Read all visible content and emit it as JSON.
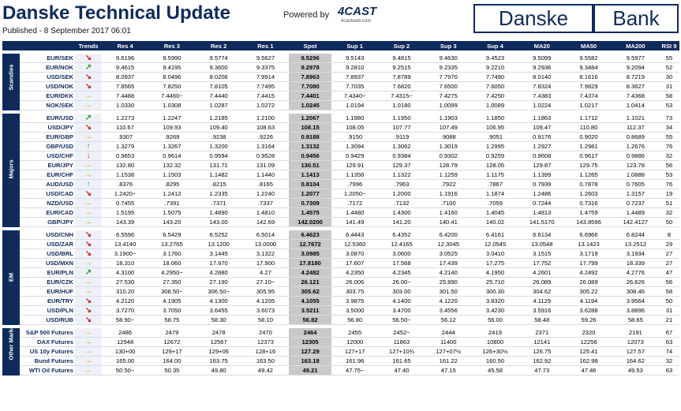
{
  "header": {
    "title": "Danske Technical Update",
    "published": "Published - 8 September 2017 06:01",
    "powered_by": "Powered by",
    "logo_4cast": "4CAST",
    "logo_4cast_sub": "4castweb.com",
    "logo_danske": "Danske",
    "logo_bank": "Bank"
  },
  "table": {
    "columns": [
      "Trends",
      "Res 4",
      "Res 3",
      "Res 2",
      "Res 1",
      "Spot",
      "Sup 1",
      "Sup 2",
      "Sup 3",
      "Sup 4",
      "MA20",
      "MA50",
      "MA200",
      "RSI 9"
    ],
    "groups": [
      {
        "name": "Scandies",
        "rows": [
          [
            "EUR/SEK",
            "↘",
            "9.6196",
            "9.5990",
            "9.5774",
            "9.5627",
            "9.5296",
            "9.5143",
            "9.4815",
            "9.4630",
            "9.4523",
            "9.5099",
            "9.5582",
            "9.5977",
            "55"
          ],
          [
            "EUR/NOK",
            "↗",
            "9.4615",
            "9.4195",
            "9.3600",
            "9.3375",
            "9.2978",
            "9.2810",
            "9.2515",
            "9.2335",
            "9.2210",
            "9.2936",
            "9.3484",
            "9.2094",
            "52"
          ],
          [
            "USD/SEK",
            "↘",
            "8.0937",
            "8.0496",
            "8.0206",
            "7.9914",
            "7.8963",
            "7.8937",
            "7.8789",
            "7.7970",
            "7.7490",
            "8.0140",
            "8.1616",
            "8.7219",
            "30"
          ],
          [
            "USD/NOK",
            "↘",
            "7.8565",
            "7.8250",
            "7.8105",
            "7.7495",
            "7.7080",
            "7.7035",
            "7.6820",
            "7.6500",
            "7.6050",
            "7.8324",
            "7.9829",
            "8.3627",
            "31"
          ],
          [
            "EUR/DKK",
            "→",
            "7.4488",
            "7.4460~",
            "7.4440",
            "7.4415",
            "7.4401",
            "7.4340~",
            "7.4315~",
            "7.4275",
            "7.4250",
            "7.4383",
            "7.4374",
            "7.4368",
            "58"
          ],
          [
            "NOK/SEK",
            "→",
            "1.0330",
            "1.0308",
            "1.0287",
            "1.0272",
            "1.0245",
            "1.0194",
            "1.0180",
            "1.0099",
            "1.0089",
            "1.0224",
            "1.0217",
            "1.0414",
            "53"
          ]
        ]
      },
      {
        "name": "Majors",
        "rows": [
          [
            "EUR/USD",
            "↗",
            "1.2273",
            "1.2247",
            "1.2185",
            "1.2100",
            "1.2067",
            "1.1980",
            "1.1950",
            "1.1903",
            "1.1850",
            "1.1863",
            "1.1712",
            "1.1021",
            "73"
          ],
          [
            "USD/JPY",
            "↘",
            "110.67",
            "109.93",
            "109.40",
            "108.63",
            "108.15",
            "108.05",
            "107.77",
            "107.49",
            "106.95",
            "109.47",
            "110.80",
            "112.37",
            "34"
          ],
          [
            "EUR/GBP",
            "→",
            ".9307",
            ".9269",
            ".9238",
            ".9226",
            "0.9188",
            ".9150",
            ".9119",
            ".9088",
            ".9051",
            "0.9176",
            "0.9020",
            "0.8689",
            "55"
          ],
          [
            "GBP/USD",
            "↑",
            "1.3279",
            "1.3267",
            "1.3200",
            "1.3164",
            "1.3132",
            "1.3094",
            "1.3062",
            "1.3019",
            "1.2995",
            "1.2927",
            "1.2981",
            "1.2676",
            "76"
          ],
          [
            "USD/CHF",
            "↓",
            "0.9653",
            "0.9614",
            "0.9594",
            "0.9528",
            "0.9456",
            "0.9429",
            "0.9384",
            "0.9302",
            "0.9259",
            "0.9608",
            "0.9617",
            "0.9886",
            "32"
          ],
          [
            "EUR/JPY",
            "→",
            "132.80",
            "132.32",
            "131.71",
            "131.09",
            "130.51",
            "129.91",
            "129.37",
            "128.79",
            "128.05",
            "129.87",
            "129.75",
            "123.78",
            "56"
          ],
          [
            "EUR/CHF",
            "→",
            "1.1538",
            "1.1503",
            "1.1482",
            "1.1440",
            "1.1413",
            "1.1356",
            "1.1322",
            "1.1259",
            "1.1175",
            "1.1399",
            "1.1265",
            "1.0888",
            "53"
          ],
          [
            "AUD/USD",
            "↑",
            ".8376",
            ".8295",
            ".8215",
            ".8165",
            "0.8104",
            ".7996",
            ".7963",
            ".7922",
            ".7867",
            "0.7939",
            "0.7878",
            "0.7605",
            "76"
          ],
          [
            "USD/CAD",
            "↘",
            "1.2420~",
            "1.2412",
            "1.2335",
            "1.2240",
            "1.2077",
            "1.2050~",
            "1.2000",
            "1.1916",
            "1.1874",
            "1.2486",
            "1.2603",
            "1.3157",
            "19"
          ],
          [
            "NZD/USD",
            "→",
            "0.7455",
            ".7391",
            ".7371",
            ".7337",
            "0.7309",
            ".7172",
            ".7132",
            ".7100",
            ".7059",
            "0.7244",
            "0.7316",
            "0.7237",
            "51"
          ],
          [
            "EUR/CAD",
            "→",
            "1.5195",
            "1.5075",
            "1.4890",
            "1.4810",
            "1.4575",
            "1.4480",
            "1.4300",
            "1.4160",
            "1.4045",
            "1.4813",
            "1.4759",
            "1.4489",
            "32"
          ],
          [
            "GBP/JPY",
            "→",
            "143.39",
            "143.20",
            "143.00",
            "142.69",
            "142.0200",
            "141.49",
            "141.20",
            "140.41",
            "140.02",
            "141.5170",
            "143.8596",
            "142.4127",
            "50"
          ]
        ]
      },
      {
        "name": "EM",
        "rows": [
          [
            "USD/CNH",
            "↘",
            "6.5596",
            "6.5429",
            "6.5252",
            "6.5014",
            "6.4623",
            "6.4443",
            "6.4352",
            "6.4200",
            "6.4161",
            "6.6134",
            "6.6966",
            "6.8244",
            "8"
          ],
          [
            "USD/ZAR",
            "↘",
            "13.4140",
            "13.2765",
            "13.1200",
            "13.0000",
            "12.7672",
            "12.5360",
            "12.4165",
            "12.3045",
            "12.0545",
            "13.0548",
            "13.1423",
            "13.2512",
            "29"
          ],
          [
            "USD/BRL",
            "↘",
            "3.1900~",
            "3.1760",
            "3.1445",
            "3.1322",
            "3.0985",
            "3.0870",
            "3.0600",
            "3.0525",
            "3.0410",
            "3.1515",
            "3.1719",
            "3.1934",
            "27"
          ],
          [
            "USD/MXN",
            "→",
            "18.310",
            "18.060",
            "17.970",
            "17.900",
            "17.8180",
            "17.607",
            "17.568",
            "17.439",
            "17.275",
            "17.752",
            "17.799",
            "18.339",
            "27"
          ],
          [
            "EUR/PLN",
            "↗",
            "4.3100",
            "4.2950~",
            "4.2880",
            "4.27",
            "4.2482",
            "4.2350",
            "4.2345",
            "4.2140",
            "4.1950",
            "4.2601",
            "4.2492",
            "4.2776",
            "47"
          ],
          [
            "EUR/CZK",
            "→",
            "27.530",
            "27.350",
            "27.190",
            "27.10~",
            "26.121",
            "26.006",
            "26.00~",
            "25.890",
            "25.710",
            "26.089",
            "26.089",
            "26.626",
            "56"
          ],
          [
            "EUR/HUF",
            "→",
            "310.20",
            "308.50~",
            "306.50~",
            "305.95",
            "305.62",
            "303.75",
            "303.00",
            "301.50",
            "300.30",
            "304.62",
            "305.22",
            "308.46",
            "58"
          ],
          [
            "EUR/TRY",
            "↘",
            "4.2120",
            "4.1905",
            "4.1300",
            "4.1205",
            "4.1055",
            "3.9875",
            "4.1400",
            "4.1220",
            "3.8320",
            "4.1129",
            "4.1194",
            "3.9564",
            "50"
          ],
          [
            "USD/PLN",
            "↘",
            "3.7270",
            "3.7050",
            "3.6455",
            "3.6073",
            "3.5211",
            "3.5000",
            "3.4700",
            "3.4556",
            "3.4230",
            "3.5916",
            "3.6288",
            "3.8896",
            "31"
          ],
          [
            "USD/RUB",
            "↘",
            "58.90~",
            "58.75",
            "58.30",
            "58.10",
            "56.82",
            "56.80",
            "56.50~",
            "56.12",
            "56.00",
            "58.48",
            "59.26",
            "58.65",
            "21"
          ]
        ]
      },
      {
        "name": "Other Markets",
        "rows": [
          [
            "S&P 500 Futures",
            "→",
            "2486",
            "2479",
            "2478",
            "2470",
            "2464",
            "2455",
            "2452~",
            "2444",
            "2419",
            "2371",
            "2320",
            "2191",
            "67"
          ],
          [
            "DAX Futures",
            "→",
            "12948",
            "12672",
            "12567",
            "12373",
            "12305",
            "12000",
            "11863",
            "11400",
            "10800",
            "12141",
            "12256",
            "12073",
            "63"
          ],
          [
            "US 10y Futures",
            "→",
            "130+00",
            "129+17",
            "129+06",
            "128+16",
            "127.29",
            "127+17",
            "127+10¾",
            "127+07½",
            "126+30½",
            "126.75",
            "125.41",
            "127.57",
            "74"
          ],
          [
            "Bund Futures",
            "→",
            "165.00",
            "164.00",
            "163.75",
            "163.50",
            "163.18",
            "161.96",
            "161.65",
            "161.22",
            "160.50",
            "162.92",
            "162.98",
            "164.62",
            "32"
          ],
          [
            "WTI Oil Futures",
            "→",
            "50.50~",
            "50.35",
            "49.80",
            "49.42",
            "49.21",
            "47.75~",
            "47.40",
            "47.15",
            "45.58",
            "47.73",
            "47.46",
            "49.53",
            "63"
          ]
        ]
      }
    ]
  }
}
